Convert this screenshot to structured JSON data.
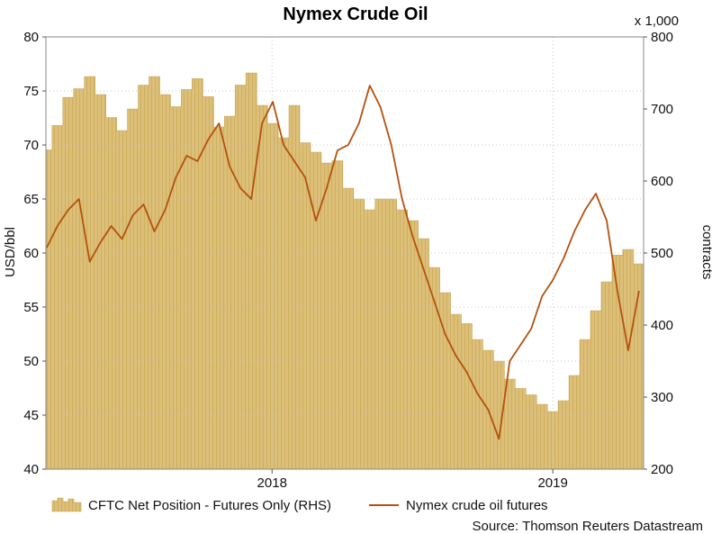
{
  "chart_data": {
    "type": "line",
    "title": "Nymex Crude Oil",
    "ylabel_left": "USD/bbl",
    "ylabel_right": "contracts",
    "right_multiplier": "x 1,000",
    "ylim_left": [
      40,
      80
    ],
    "ylim_right": [
      200,
      800
    ],
    "yticks_left": [
      "80",
      "75",
      "70",
      "65",
      "60",
      "55",
      "50",
      "45",
      "40"
    ],
    "yticks_right": [
      "800",
      "700",
      "600",
      "500",
      "400",
      "300",
      "200"
    ],
    "xticks": [
      {
        "label": "2018",
        "x": "2018-01-01"
      },
      {
        "label": "2019",
        "x": "2019-01-01"
      }
    ],
    "xlim": [
      "2017-03-13",
      "2019-04-29"
    ],
    "grid": true,
    "legend_position": "bottom",
    "source": "Source: Thomson Reuters Datastream",
    "series": [
      {
        "name": "CFTC Net Position - Futures Only (RHS)",
        "kind": "area",
        "axis": "right",
        "color": "#dcbf78",
        "x": [
          "2017-03-14",
          "2017-03-28",
          "2017-04-11",
          "2017-04-25",
          "2017-05-09",
          "2017-05-23",
          "2017-06-06",
          "2017-06-20",
          "2017-07-04",
          "2017-07-18",
          "2017-08-01",
          "2017-08-15",
          "2017-08-29",
          "2017-09-12",
          "2017-09-26",
          "2017-10-10",
          "2017-10-24",
          "2017-11-07",
          "2017-11-21",
          "2017-12-05",
          "2017-12-19",
          "2018-01-02",
          "2018-01-16",
          "2018-01-30",
          "2018-02-13",
          "2018-02-27",
          "2018-03-13",
          "2018-03-27",
          "2018-04-10",
          "2018-04-24",
          "2018-05-08",
          "2018-05-22",
          "2018-06-05",
          "2018-06-19",
          "2018-07-03",
          "2018-07-17",
          "2018-07-31",
          "2018-08-14",
          "2018-08-28",
          "2018-09-11",
          "2018-09-25",
          "2018-10-09",
          "2018-10-23",
          "2018-11-06",
          "2018-11-20",
          "2018-12-04",
          "2018-12-18",
          "2019-01-01",
          "2019-01-15",
          "2019-01-29",
          "2019-02-12",
          "2019-02-26",
          "2019-03-12",
          "2019-03-26",
          "2019-04-09",
          "2019-04-23"
        ],
        "values": [
          643,
          677,
          716,
          728,
          745,
          720,
          688,
          670,
          700,
          733,
          745,
          720,
          703,
          727,
          742,
          717,
          675,
          690,
          733,
          750,
          705,
          680,
          660,
          705,
          653,
          640,
          625,
          628,
          590,
          575,
          560,
          575,
          575,
          560,
          545,
          520,
          480,
          445,
          415,
          402,
          380,
          365,
          350,
          325,
          312,
          303,
          290,
          280,
          295,
          330,
          380,
          420,
          460,
          497,
          505,
          485
        ]
      },
      {
        "name": "Nymex crude oil futures",
        "kind": "line",
        "axis": "left",
        "color": "#b5510e",
        "x": [
          "2017-03-14",
          "2017-03-28",
          "2017-04-11",
          "2017-04-25",
          "2017-05-09",
          "2017-05-23",
          "2017-06-06",
          "2017-06-20",
          "2017-07-04",
          "2017-07-18",
          "2017-08-01",
          "2017-08-15",
          "2017-08-29",
          "2017-09-12",
          "2017-09-26",
          "2017-10-10",
          "2017-10-24",
          "2017-11-07",
          "2017-11-21",
          "2017-12-05",
          "2017-12-19",
          "2018-01-02",
          "2018-01-16",
          "2018-01-30",
          "2018-02-13",
          "2018-02-27",
          "2018-03-13",
          "2018-03-27",
          "2018-04-10",
          "2018-04-24",
          "2018-05-08",
          "2018-05-22",
          "2018-06-05",
          "2018-06-19",
          "2018-07-03",
          "2018-07-17",
          "2018-07-31",
          "2018-08-14",
          "2018-08-28",
          "2018-09-11",
          "2018-09-25",
          "2018-10-09",
          "2018-10-23",
          "2018-11-06",
          "2018-11-20",
          "2018-12-04",
          "2018-12-18",
          "2019-01-01",
          "2019-01-15",
          "2019-01-29",
          "2019-02-12",
          "2019-02-26",
          "2019-03-12",
          "2019-03-26",
          "2019-04-09",
          "2019-04-23"
        ],
        "values": [
          60.5,
          62.5,
          64.0,
          65.0,
          59.2,
          61.0,
          62.5,
          61.3,
          63.5,
          64.5,
          62.0,
          64.0,
          67.0,
          69.0,
          68.5,
          70.5,
          72.0,
          68.0,
          66.0,
          65.0,
          72.0,
          74.0,
          70.0,
          68.5,
          67.0,
          63.0,
          66.0,
          69.5,
          70.0,
          72.0,
          75.5,
          73.5,
          70.0,
          65.0,
          61.5,
          58.5,
          55.5,
          52.5,
          50.5,
          49.0,
          47.0,
          45.5,
          42.8,
          50.0,
          51.5,
          53.0,
          56.0,
          57.5,
          59.5,
          62.0,
          64.0,
          65.5,
          63.0,
          56.5,
          51.0,
          56.5
        ]
      }
    ]
  }
}
